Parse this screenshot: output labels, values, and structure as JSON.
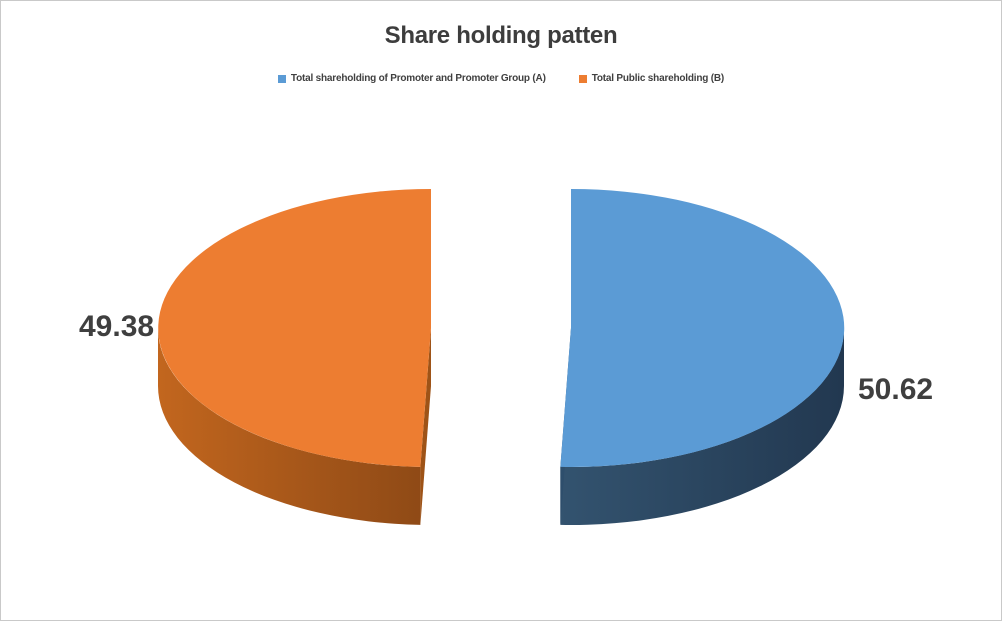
{
  "window": {
    "background": "#FFFFFF",
    "border_color": "#C9C9C9"
  },
  "chart_data": {
    "type": "pie",
    "title": "Share holding patten",
    "effect": "3d-exploded-pie",
    "legend_position": "top",
    "grid": false,
    "start_angle_deg": 90,
    "direction": "clockwise",
    "slices": [
      {
        "name": "Total shareholding of Promoter and Promoter Group (A)",
        "value": 50.62,
        "data_label": "50.62",
        "top_color": "#5B9BD5",
        "side_light": "#33536F",
        "side_dark": "#223850",
        "cut_color": "#2E4E6C"
      },
      {
        "name": "Total Public shareholding (B)",
        "value": 49.38,
        "data_label": "49.38",
        "top_color": "#ED7D31",
        "side_light": "#C2661E",
        "side_dark": "#8F4A16",
        "cut_color": "#9E5317"
      }
    ]
  }
}
